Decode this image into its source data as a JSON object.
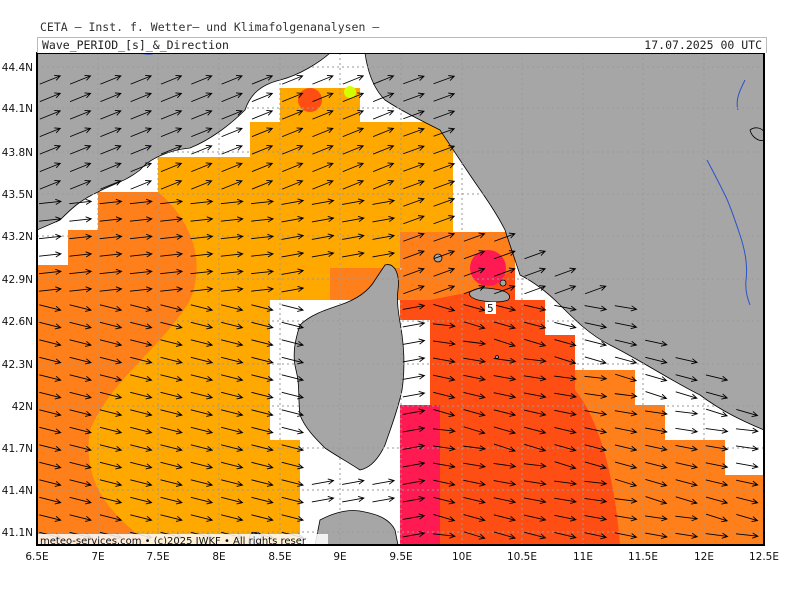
{
  "header": {
    "institute": "CETA – Inst. f. Wetter– und Klimafolgenanalysen –",
    "title": "Wave_PERIOD_[s]_&_Direction",
    "datetime": "17.07.2025 00 UTC"
  },
  "credit": "meteo-services.com • (c)2025 IWKF • All rights reser",
  "map": {
    "lat_labels": [
      "44.4N",
      "44.1N",
      "43.8N",
      "43.5N",
      "43.2N",
      "42.9N",
      "42.6N",
      "42.3N",
      "42N",
      "41.7N",
      "41.4N",
      "41.1N"
    ],
    "lon_labels": [
      "6.5E",
      "7E",
      "7.5E",
      "8E",
      "8.5E",
      "9E",
      "9.5E",
      "10E",
      "10.5E",
      "11E",
      "11.5E",
      "12E",
      "12.5E"
    ],
    "contour_label": "5",
    "colors": {
      "land": "#a6a6a6",
      "no_data_sea": "#ffffff",
      "period_4": "#ffa800",
      "period_5": "#ff7f1a",
      "period_6": "#ff4e14",
      "period_7": "#ff1a52",
      "river": "#2c52c8"
    }
  }
}
